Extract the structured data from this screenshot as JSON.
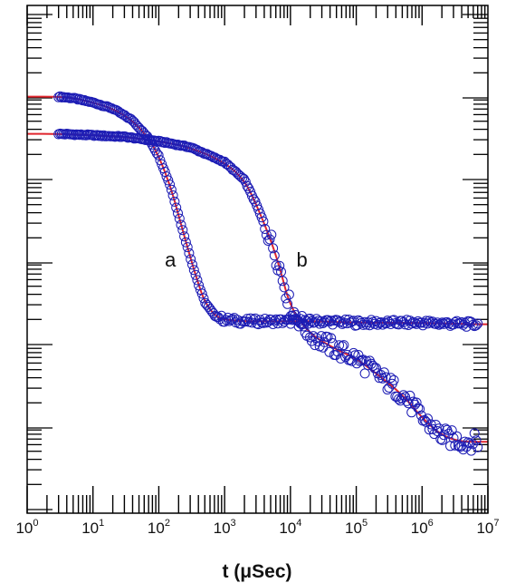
{
  "chart_data": {
    "type": "scatter",
    "title": "",
    "xlabel": "t (μSec)",
    "ylabel": "",
    "x_scale": "log",
    "xlim": [
      1,
      10000000
    ],
    "x_ticks": [
      {
        "base": "10",
        "exp": "0"
      },
      {
        "base": "10",
        "exp": "1"
      },
      {
        "base": "10",
        "exp": "2"
      },
      {
        "base": "10",
        "exp": "3"
      },
      {
        "base": "10",
        "exp": "4"
      },
      {
        "base": "10",
        "exp": "5"
      },
      {
        "base": "10",
        "exp": "6"
      },
      {
        "base": "10",
        "exp": "7"
      }
    ],
    "grid": false,
    "legend": "none",
    "y_tick_labels_shown": false,
    "colors": {
      "markers": "#1c1cb4",
      "fit_line": "#e0262e",
      "axes": "#000000"
    },
    "series": [
      {
        "name": "a",
        "marker": "open-circle",
        "fit": "red-line",
        "x": [
          3,
          5,
          10,
          20,
          40,
          70,
          100,
          150,
          200,
          260,
          320,
          400,
          500,
          700,
          1000,
          2000,
          5000,
          10000,
          30000,
          100000,
          1000000,
          7000000
        ],
        "y": [
          0.98,
          0.975,
          0.96,
          0.94,
          0.9,
          0.84,
          0.78,
          0.68,
          0.58,
          0.49,
          0.42,
          0.35,
          0.29,
          0.245,
          0.23,
          0.225,
          0.225,
          0.225,
          0.225,
          0.22,
          0.22,
          0.215
        ]
      },
      {
        "name": "b",
        "marker": "open-circle",
        "fit": "red-line",
        "x": [
          3,
          10,
          30,
          100,
          300,
          1000,
          2000,
          3000,
          5000,
          7000,
          10000,
          20000,
          50000,
          100000,
          200000,
          500000,
          1000000,
          2000000,
          4000000,
          7000000
        ],
        "y": [
          0.855,
          0.85,
          0.845,
          0.83,
          0.81,
          0.76,
          0.7,
          0.62,
          0.5,
          0.4,
          0.27,
          0.18,
          0.13,
          0.1,
          0.05,
          -0.02,
          -0.1,
          -0.16,
          -0.18,
          -0.18
        ]
      }
    ],
    "annotations": [
      {
        "text": "a",
        "x": 150,
        "y": 0.42
      },
      {
        "text": "b",
        "x": 15000,
        "y": 0.42
      }
    ]
  }
}
